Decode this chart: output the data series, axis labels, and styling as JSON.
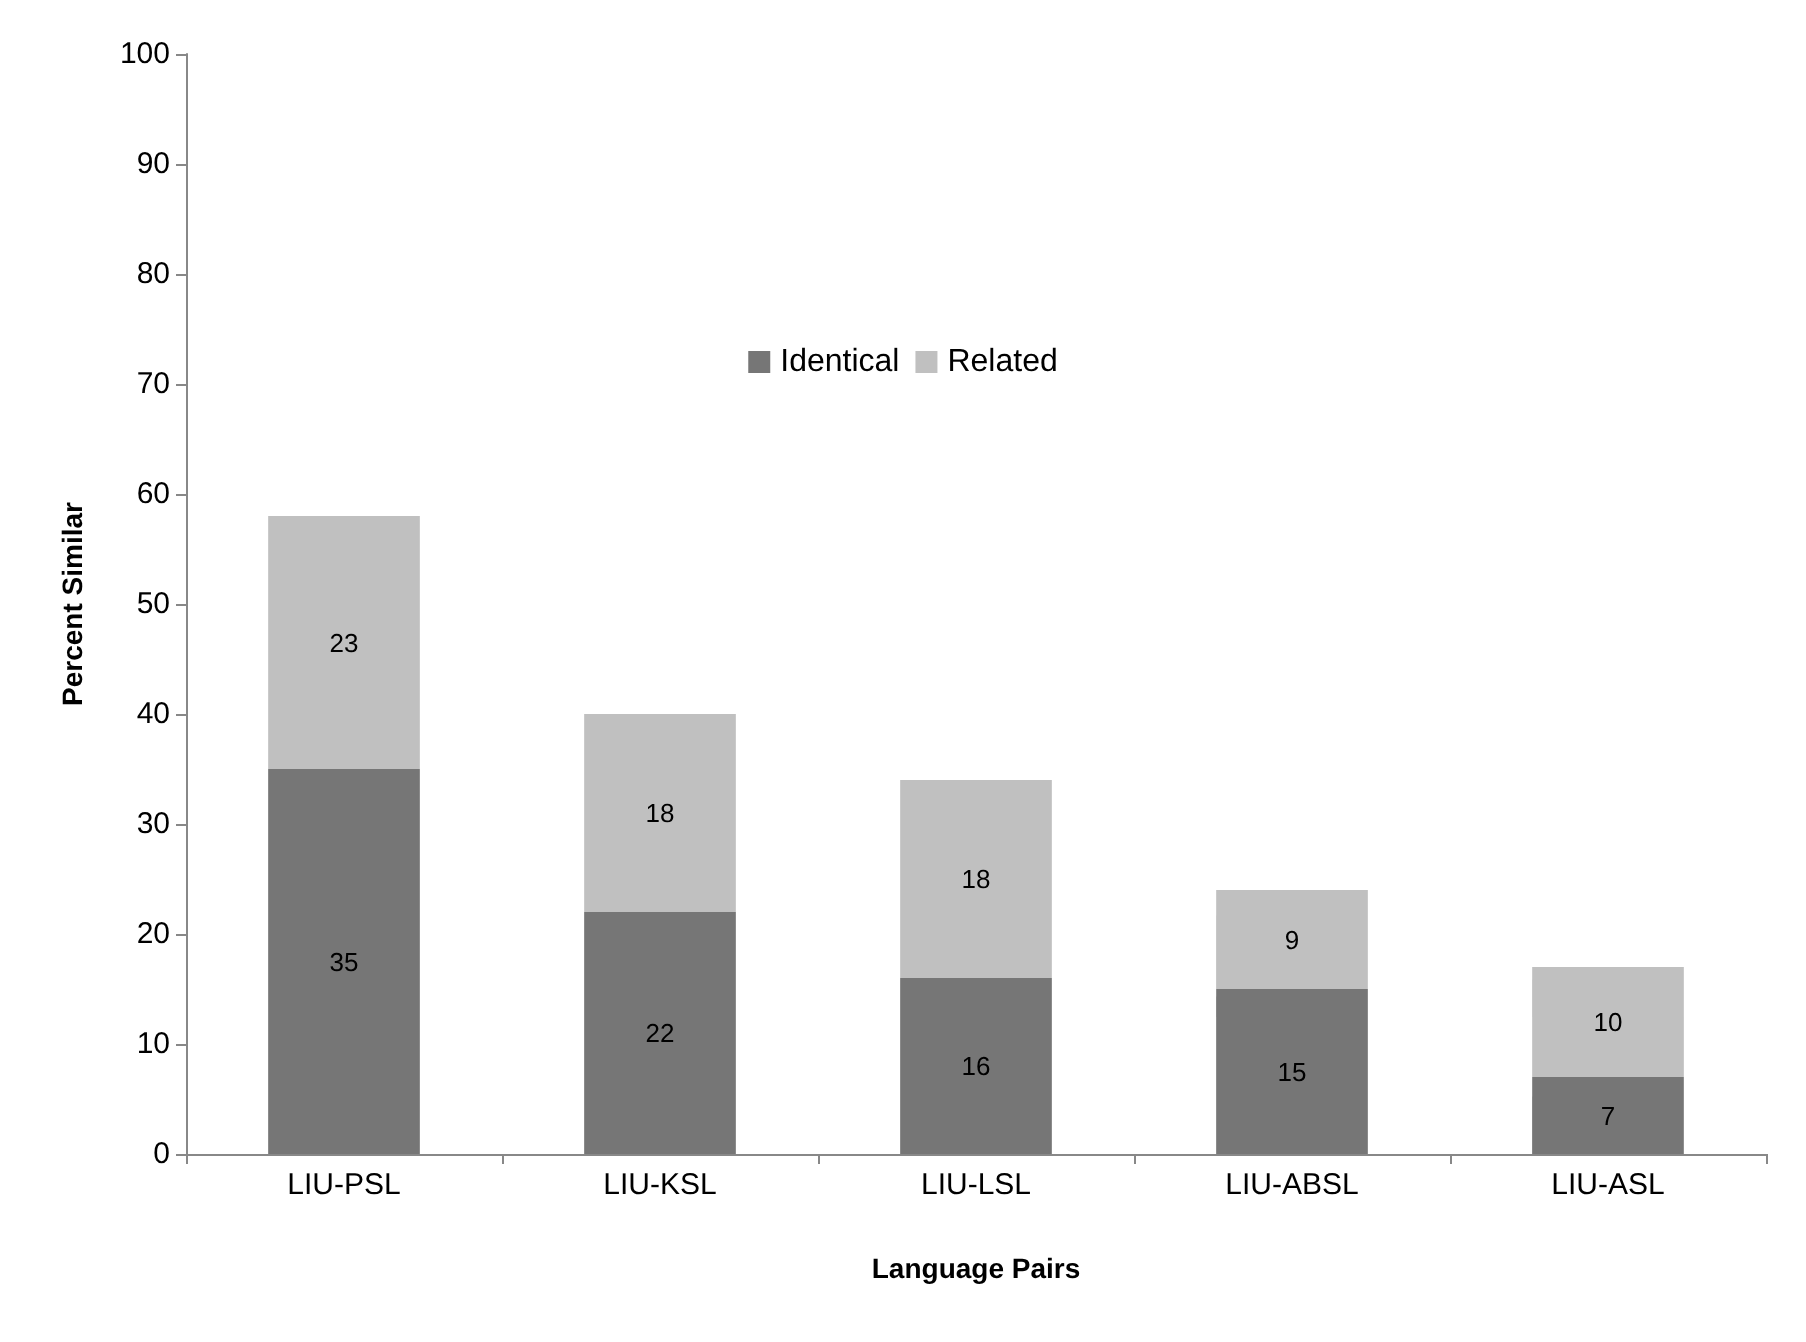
{
  "chart_data": {
    "type": "bar",
    "xlabel": "Language Pairs",
    "ylabel": "Percent Similar",
    "categories": [
      "LIU-PSL",
      "LIU-KSL",
      "LIU-LSL",
      "LIU-ABSL",
      "LIU-ASL"
    ],
    "stacked": true,
    "data_labels": true,
    "legend": "top",
    "grid": false,
    "ylim": [
      0,
      100
    ],
    "yticks": [
      0,
      10,
      20,
      30,
      40,
      50,
      60,
      70,
      80,
      90,
      100
    ],
    "series": [
      {
        "name": "Identical",
        "color": "#767676",
        "values": [
          35,
          22,
          16,
          15,
          7
        ]
      },
      {
        "name": "Related",
        "color": "#c0c0c0",
        "values": [
          23,
          18,
          18,
          9,
          10
        ]
      }
    ]
  }
}
